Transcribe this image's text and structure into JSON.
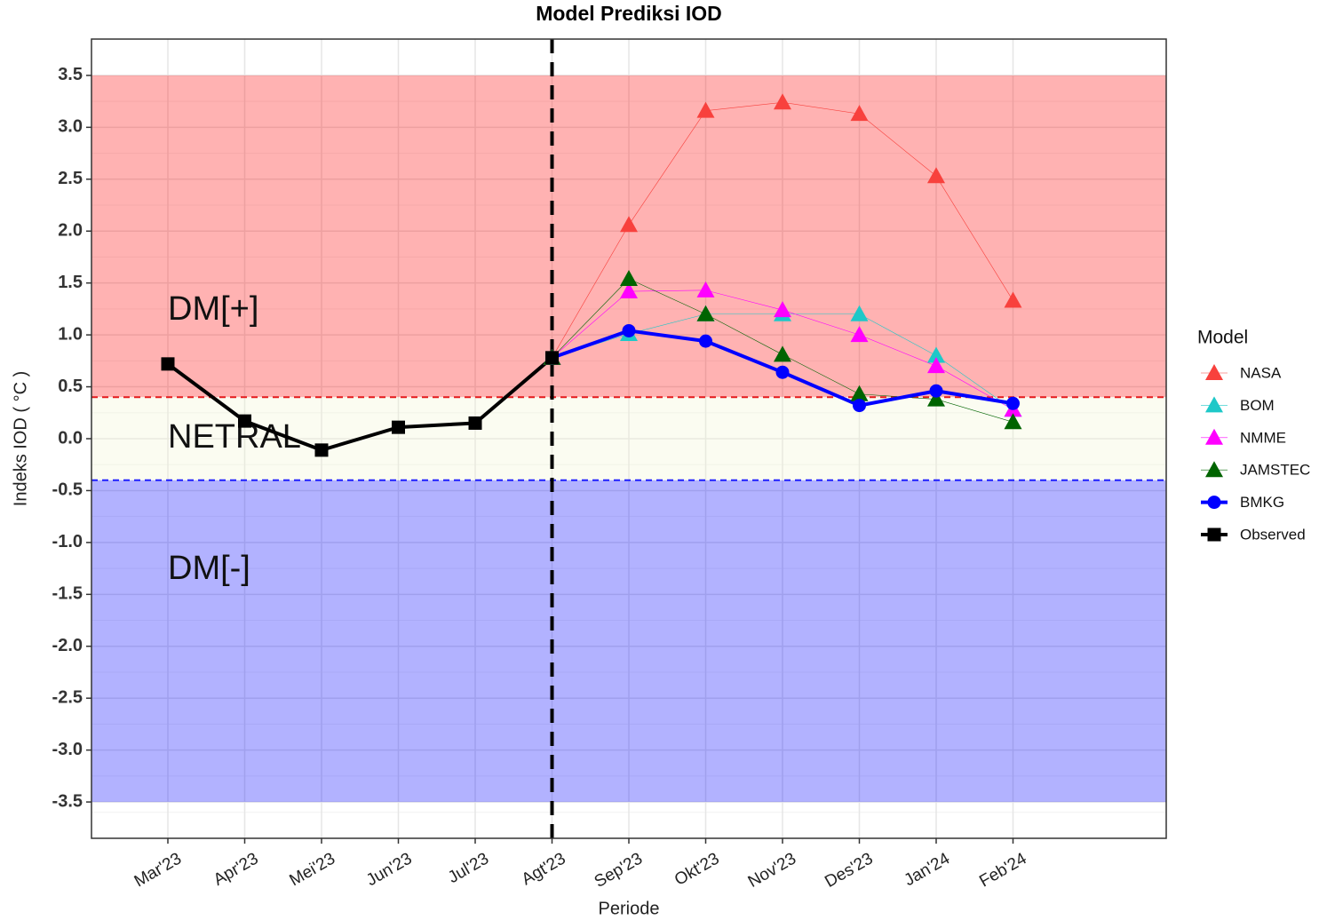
{
  "chart_data": {
    "type": "line",
    "title": "Model Prediksi IOD",
    "x_label": "Periode",
    "y_label": "Indeks IOD ( °C )",
    "legend_title": "Model",
    "legend_position": "right",
    "grid": true,
    "categories": [
      "Mar'23",
      "Apr'23",
      "Mei'23",
      "Jun'23",
      "Jul'23",
      "Agt'23",
      "Sep'23",
      "Okt'23",
      "Nov'23",
      "Des'23",
      "Jan'24",
      "Feb'24"
    ],
    "forecast_start": "Agt'23",
    "ylim": [
      -3.85,
      3.85
    ],
    "yticks": [
      3.5,
      {
        "value": 3,
        "label": "3.0"
      },
      2.5,
      {
        "value": 2,
        "label": "2.0"
      },
      1.5,
      {
        "value": 1,
        "label": "1.0"
      },
      0.5,
      {
        "value": 0,
        "label": "0.0"
      },
      -0.5,
      {
        "value": -1,
        "label": "-1.0"
      },
      -1.5,
      {
        "value": -2,
        "label": "-2.0"
      },
      -2.5,
      {
        "value": -3,
        "label": "-3.0"
      },
      -3.5
    ],
    "regions": [
      {
        "label": "DM[+]",
        "range": [
          0.4,
          3.5
        ],
        "color": "#ff0000",
        "line_color": "#e41a1c"
      },
      {
        "label": "NETRAL",
        "range": [
          -0.4,
          0.4
        ],
        "color": "#f3f6d0",
        "line_color": null
      },
      {
        "label": "DM[-]",
        "range": [
          -3.5,
          -0.4
        ],
        "color": "#0000ff",
        "line_color": "#1f1fff"
      }
    ],
    "series": [
      {
        "name": "NASA",
        "color": "#f8413d",
        "marker": "triangle",
        "width": 0.6,
        "values": [
          null,
          null,
          null,
          null,
          null,
          0.78,
          2.06,
          3.16,
          3.24,
          3.13,
          2.53,
          1.33
        ]
      },
      {
        "name": "BOM",
        "color": "#1ec8c8",
        "marker": "triangle",
        "width": 0.6,
        "values": [
          null,
          null,
          null,
          null,
          null,
          0.78,
          1.01,
          1.2,
          1.2,
          1.2,
          0.8,
          0.28
        ]
      },
      {
        "name": "NMME",
        "color": "#ff00ff",
        "marker": "triangle",
        "width": 0.6,
        "values": [
          null,
          null,
          null,
          null,
          null,
          0.78,
          1.42,
          1.43,
          1.24,
          1.0,
          0.7,
          0.28
        ]
      },
      {
        "name": "JAMSTEC",
        "color": "#006400",
        "marker": "triangle",
        "width": 0.6,
        "values": [
          null,
          null,
          null,
          null,
          null,
          0.78,
          1.54,
          1.2,
          0.81,
          0.43,
          0.38,
          0.16
        ]
      },
      {
        "name": "BMKG",
        "color": "#0000ff",
        "marker": "circle",
        "width": 4,
        "values": [
          null,
          null,
          null,
          null,
          null,
          0.78,
          1.04,
          0.94,
          0.64,
          0.32,
          0.46,
          0.34
        ]
      },
      {
        "name": "Observed",
        "color": "#000000",
        "marker": "square",
        "width": 4,
        "values": [
          0.72,
          0.17,
          -0.11,
          0.11,
          0.15,
          0.78,
          null,
          null,
          null,
          null,
          null,
          null
        ]
      }
    ]
  }
}
